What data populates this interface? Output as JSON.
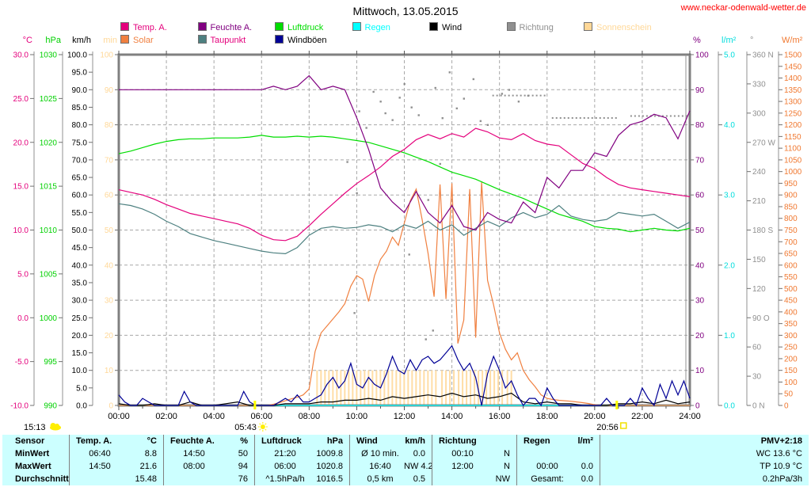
{
  "header": {
    "title": "Mittwoch, 13.05.2015",
    "url": "www.neckar-odenwald-wetter.de"
  },
  "legend": {
    "items": [
      {
        "label": "Temp. A.",
        "color": "#e4007c",
        "text_color": "#e4007c"
      },
      {
        "label": "Feuchte A.",
        "color": "#800080",
        "text_color": "#800080"
      },
      {
        "label": "Luftdruck",
        "color": "#00dd00",
        "text_color": "#00dd00"
      },
      {
        "label": "Regen",
        "color": "#00ffff",
        "text_color": "#00ffff"
      },
      {
        "label": "Wind",
        "color": "#000000",
        "text_color": "#000000"
      },
      {
        "label": "Richtung",
        "color": "#909090",
        "text_color": "#909090"
      },
      {
        "label": "Sonnenschein",
        "color": "#ffd898",
        "text_color": "#ffd898"
      },
      {
        "label": "Solar",
        "color": "#f08040",
        "text_color": "#f08040"
      },
      {
        "label": "Taupunkt",
        "color": "#4d8080",
        "text_color": "#e4007c"
      },
      {
        "label": "Windböen",
        "color": "#000096",
        "text_color": "#000000"
      }
    ]
  },
  "sun": {
    "daylength": "15:13",
    "sunrise": "05:43",
    "sunrise_hour": 5.72,
    "sunset": "20:56",
    "sunset_hour": 20.93
  },
  "chart_data": {
    "type": "line",
    "title": "Mittwoch, 13.05.2015",
    "x_range_hours": [
      0,
      24
    ],
    "x_ticks": [
      "00:00",
      "02:00",
      "04:00",
      "06:00",
      "08:00",
      "10:00",
      "12:00",
      "14:00",
      "16:00",
      "18:00",
      "20:00",
      "22:00",
      "24:00"
    ],
    "grid": true,
    "axes_left": [
      {
        "id": "temp",
        "title": "°C",
        "color": "#e4007c",
        "min": -10,
        "max": 30,
        "ticks": [
          "30.0",
          "25.0",
          "20.0",
          "15.0",
          "10.0",
          "5.0",
          "0.0",
          "-5.0",
          "-10.0"
        ]
      },
      {
        "id": "druck",
        "title": "hPa",
        "color": "#00d000",
        "min": 990,
        "max": 1030,
        "ticks": [
          "1030",
          "1025",
          "1020",
          "1015",
          "1010",
          "1005",
          "1000",
          "995",
          "990"
        ]
      },
      {
        "id": "wind",
        "title": "km/h",
        "color": "#000000",
        "min": 0,
        "max": 100,
        "ticks": [
          "100.0",
          "95.0",
          "90.0",
          "85.0",
          "80.0",
          "75.0",
          "70.0",
          "65.0",
          "60.0",
          "55.0",
          "50.0",
          "45.0",
          "40.0",
          "35.0",
          "30.0",
          "25.0",
          "20.0",
          "15.0",
          "10.0",
          "5.0",
          "0.0"
        ]
      },
      {
        "id": "sonne",
        "title": "min",
        "color": "#ffd898",
        "min": 0,
        "max": 100,
        "ticks": [
          "100",
          "90",
          "80",
          "70",
          "60",
          "50",
          "40",
          "30",
          "20",
          "10",
          "0"
        ]
      }
    ],
    "axes_right": [
      {
        "id": "feuchte",
        "title": "%",
        "color": "#800080",
        "min": 0,
        "max": 100,
        "ticks": [
          "100",
          "90",
          "80",
          "70",
          "60",
          "50",
          "40",
          "30",
          "20",
          "10",
          "0"
        ]
      },
      {
        "id": "regen",
        "title": "l/m²",
        "color": "#00dddd",
        "min": 0,
        "max": 5,
        "ticks": [
          "5.0",
          "4.0",
          "3.0",
          "2.0",
          "1.0",
          "0.0"
        ]
      },
      {
        "id": "richtung",
        "title": "°",
        "color": "#909090",
        "min": 0,
        "max": 360,
        "ticks": [
          "360 N",
          "330",
          "300",
          "270 W",
          "240",
          "210",
          "180 S",
          "150",
          "120",
          "90 O",
          "60",
          "30",
          "0 N"
        ]
      },
      {
        "id": "solar",
        "title": "W/m²",
        "color": "#f07830",
        "min": 0,
        "max": 1500,
        "ticks": [
          "1500",
          "1450",
          "1400",
          "1350",
          "1300",
          "1250",
          "1200",
          "1150",
          "1100",
          "1050",
          "1000",
          "950",
          "900",
          "850",
          "800",
          "750",
          "700",
          "650",
          "600",
          "550",
          "500",
          "450",
          "400",
          "350",
          "300",
          "250",
          "200",
          "150",
          "100",
          "50",
          "0"
        ]
      }
    ],
    "series": [
      {
        "name": "Temp. A.",
        "unit": "°C",
        "axis": "temp",
        "color": "#e4007c",
        "x_start": 0,
        "x_step": 0.5,
        "values": [
          14.6,
          14.3,
          14.0,
          13.5,
          12.9,
          12.4,
          11.9,
          11.6,
          11.3,
          11.0,
          10.7,
          10.2,
          9.4,
          8.9,
          8.8,
          9.3,
          10.5,
          11.8,
          13.0,
          14.2,
          15.3,
          16.2,
          17.2,
          18.4,
          19.2,
          20.3,
          20.9,
          20.4,
          21.0,
          20.6,
          21.6,
          21.2,
          20.5,
          20.3,
          21.0,
          20.2,
          19.8,
          19.6,
          18.6,
          17.6,
          17.0,
          16.0,
          15.2,
          14.8,
          14.6,
          14.4,
          14.2,
          14.0,
          13.8
        ]
      },
      {
        "name": "Taupunkt",
        "unit": "°C",
        "axis": "temp",
        "color": "#4d8080",
        "x_start": 0,
        "x_step": 0.5,
        "values": [
          13.0,
          12.8,
          12.4,
          11.8,
          11.0,
          10.4,
          9.6,
          9.2,
          8.8,
          8.5,
          8.2,
          7.9,
          7.6,
          7.4,
          7.3,
          8.0,
          9.4,
          10.2,
          10.4,
          10.2,
          10.3,
          10.6,
          10.4,
          9.8,
          10.6,
          10.2,
          11.0,
          10.0,
          10.6,
          9.4,
          10.2,
          11.0,
          10.4,
          11.4,
          12.0,
          11.4,
          11.8,
          12.8,
          11.6,
          11.2,
          11.0,
          11.2,
          12.0,
          11.8,
          11.6,
          11.8,
          11.0,
          10.2,
          10.9
        ]
      },
      {
        "name": "Feuchte A.",
        "unit": "%",
        "axis": "feuchte",
        "color": "#800080",
        "x_start": 0,
        "x_step": 0.5,
        "values": [
          90,
          90,
          90,
          90,
          90,
          90,
          90,
          90,
          90,
          90,
          90,
          90,
          90,
          91,
          90,
          91,
          94,
          90,
          91,
          90,
          82,
          73,
          62,
          58,
          55,
          61,
          55,
          52,
          57,
          51,
          50,
          55,
          53,
          52,
          58,
          55,
          65,
          62,
          67,
          67,
          72,
          71,
          77,
          80,
          81,
          83,
          82,
          76,
          84
        ]
      },
      {
        "name": "Luftdruck",
        "unit": "hPa",
        "axis": "druck",
        "color": "#00dd00",
        "x_start": 0,
        "x_step": 0.5,
        "values": [
          1018.7,
          1019.0,
          1019.4,
          1019.8,
          1020.1,
          1020.3,
          1020.4,
          1020.4,
          1020.5,
          1020.5,
          1020.5,
          1020.6,
          1020.8,
          1020.6,
          1020.6,
          1020.7,
          1020.6,
          1020.7,
          1020.6,
          1020.4,
          1020.2,
          1020.0,
          1019.6,
          1019.2,
          1018.8,
          1018.3,
          1017.8,
          1017.2,
          1016.6,
          1016.2,
          1015.8,
          1015.2,
          1014.6,
          1014.1,
          1013.6,
          1013.0,
          1012.4,
          1011.8,
          1011.4,
          1011.0,
          1010.4,
          1010.2,
          1010.1,
          1009.8,
          1010.0,
          1010.2,
          1010.0,
          1009.9,
          1010.2
        ]
      },
      {
        "name": "Solar",
        "unit": "W/m²",
        "axis": "solar",
        "color": "#f08040",
        "x_start": 0,
        "x_step": 0.25,
        "values": [
          0,
          0,
          0,
          0,
          0,
          0,
          0,
          0,
          0,
          0,
          0,
          0,
          0,
          0,
          0,
          0,
          0,
          0,
          0,
          0,
          0,
          0,
          0,
          0,
          0,
          0,
          5,
          12,
          20,
          28,
          35,
          45,
          70,
          230,
          310,
          340,
          370,
          400,
          435,
          510,
          555,
          540,
          445,
          555,
          625,
          660,
          720,
          685,
          780,
          875,
          925,
          795,
          650,
          465,
          945,
          455,
          950,
          265,
          365,
          925,
          290,
          955,
          535,
          430,
          310,
          240,
          195,
          225,
          150,
          110,
          80,
          45,
          30,
          25,
          22,
          20,
          18,
          15,
          12,
          8,
          3,
          0,
          0,
          0,
          0,
          0,
          0,
          0,
          0,
          0,
          0,
          0,
          0,
          0,
          0,
          0,
          0
        ]
      },
      {
        "name": "Wind",
        "unit": "km/h",
        "axis": "wind",
        "color": "#000000",
        "x_start": 0,
        "x_step": 0.5,
        "values": [
          0.5,
          0,
          0,
          0.5,
          0,
          0,
          1,
          0,
          0,
          0.5,
          1,
          0,
          0,
          0,
          0.5,
          0.5,
          0.5,
          1,
          1,
          1.5,
          1.5,
          2,
          1.5,
          2.5,
          2,
          2.5,
          3,
          2.5,
          3.5,
          2.5,
          3,
          2,
          2.5,
          3.5,
          1,
          0.5,
          1,
          0.5,
          0.5,
          0,
          0,
          0,
          0.5,
          0.5,
          1,
          0.5,
          1.5,
          0.5,
          1
        ]
      },
      {
        "name": "Windböen",
        "unit": "km/h",
        "axis": "wind",
        "color": "#000096",
        "x_start": 0,
        "x_step": 0.25,
        "values": [
          3,
          1,
          0,
          0,
          2,
          1,
          0,
          0,
          0,
          0,
          0,
          4,
          1,
          0,
          0,
          0,
          0,
          0,
          0,
          0,
          0,
          4,
          1,
          0,
          0,
          0,
          0,
          1,
          2,
          1,
          3,
          1,
          1,
          2,
          3,
          6,
          8,
          5,
          7,
          12,
          6,
          5,
          8,
          6,
          5,
          9,
          14,
          10,
          9,
          13,
          10,
          13,
          14,
          12,
          13,
          15,
          17,
          13,
          10,
          12,
          8,
          0,
          9,
          14,
          10,
          5,
          7,
          3,
          0,
          2,
          2,
          0,
          5,
          2,
          0,
          0,
          0,
          0,
          0,
          0,
          0,
          0,
          2,
          0,
          0,
          0,
          2,
          0,
          5,
          2,
          0,
          6,
          2,
          7,
          3,
          7,
          2
        ]
      },
      {
        "name": "Regen",
        "unit": "l/m²",
        "axis": "regen",
        "color": "#00ffff",
        "x_start": 0,
        "x_step": 24,
        "values": [
          0,
          0
        ]
      }
    ],
    "wind_direction": {
      "name": "Richtung",
      "unit": "°",
      "axis": "richtung",
      "color": "#909090",
      "scatter": [
        [
          9.6,
          250
        ],
        [
          9.9,
          95
        ],
        [
          10.0,
          218
        ],
        [
          10.1,
          302
        ],
        [
          10.4,
          285
        ],
        [
          10.7,
          322
        ],
        [
          11.0,
          312
        ],
        [
          11.2,
          300
        ],
        [
          11.5,
          293
        ],
        [
          11.8,
          316
        ],
        [
          12.0,
          330
        ],
        [
          12.2,
          155
        ],
        [
          12.3,
          306
        ],
        [
          12.6,
          298
        ],
        [
          12.9,
          68
        ],
        [
          13.0,
          211
        ],
        [
          13.2,
          77
        ],
        [
          13.3,
          326
        ],
        [
          13.5,
          248
        ],
        [
          13.6,
          295
        ],
        [
          13.9,
          342
        ],
        [
          14.2,
          305
        ],
        [
          14.5,
          315
        ],
        [
          14.9,
          335
        ],
        [
          15.2,
          292
        ],
        [
          15.5,
          288
        ],
        [
          16.1,
          320
        ],
        [
          16.4,
          324
        ],
        [
          16.8,
          312
        ],
        [
          17.2,
          318
        ]
      ],
      "dotted_segments": [
        {
          "from": 15.7,
          "to": 18.0,
          "deg": 318
        },
        {
          "from": 18.2,
          "to": 21.0,
          "deg": 295
        },
        {
          "from": 21.5,
          "to": 23.9,
          "deg": 297
        }
      ]
    },
    "sunshine": {
      "name": "Sonnenschein",
      "unit": "min",
      "axis": "sonne",
      "color": "#ffdda6",
      "bar_value": 10,
      "segments": [
        [
          8.3,
          13.35
        ],
        [
          13.55,
          14.1
        ],
        [
          14.25,
          16.1
        ],
        [
          16.3,
          16.5
        ]
      ]
    }
  },
  "table": {
    "row_headers": [
      "Sensor",
      "MinWert",
      "MaxWert",
      "Durchschnitt"
    ],
    "columns": [
      {
        "header": "Temp. A.",
        "unit": "°C",
        "rows": [
          [
            "06:40",
            "8.8"
          ],
          [
            "14:50",
            "21.6"
          ],
          [
            "",
            "15.48"
          ]
        ]
      },
      {
        "header": "Feuchte A.",
        "unit": "%",
        "rows": [
          [
            "14:50",
            "50"
          ],
          [
            "08:00",
            "94"
          ],
          [
            "",
            "76"
          ]
        ]
      },
      {
        "header": "Luftdruck",
        "unit": "hPa",
        "rows": [
          [
            "21:20",
            "1009.8"
          ],
          [
            "06:00",
            "1020.8"
          ],
          [
            "^1.5hPa/h",
            "1016.5"
          ]
        ]
      },
      {
        "header": "Wind",
        "unit": "km/h",
        "rows": [
          [
            "Ø 10 min.",
            "0.0"
          ],
          [
            "16:40",
            "NW 4.2"
          ],
          [
            "0,5 km",
            "0.5"
          ]
        ]
      },
      {
        "header": "Richtung",
        "unit": "",
        "rows": [
          [
            "00:10",
            "N"
          ],
          [
            "12:00",
            "N"
          ],
          [
            "",
            "NW"
          ]
        ]
      },
      {
        "header": "Regen",
        "unit": "l/m²",
        "rows": [
          [
            "",
            ""
          ],
          [
            "00:00",
            "0.0"
          ],
          [
            "Gesamt:",
            "0.0"
          ]
        ]
      },
      {
        "header": "PMV+2:18",
        "unit": "",
        "rows": [
          [
            "",
            "WC 13.6 °C"
          ],
          [
            "",
            "TP 10.9 °C"
          ],
          [
            "",
            "0.2hPa/3h"
          ]
        ]
      }
    ]
  }
}
